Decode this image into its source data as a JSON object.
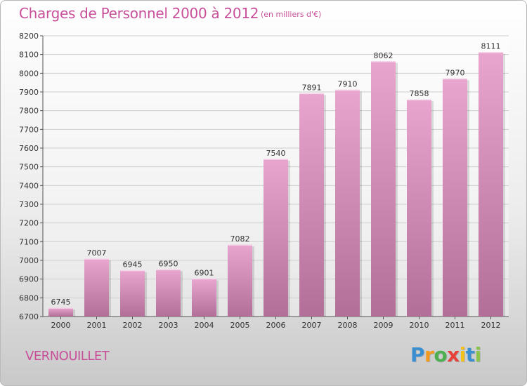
{
  "title": "Charges de Personnel 2000 à 2012",
  "subtitle": "(en milliers d'€)",
  "city": "VERNOUILLET",
  "brand": {
    "letters": [
      "P",
      "r",
      "o",
      "x",
      "i",
      "t",
      "i"
    ],
    "colors": [
      "#3a8fd1",
      "#f39a1e",
      "#4caf50",
      "#e8403a",
      "#f2c21b",
      "#3a8fd1",
      "#8bc34a"
    ]
  },
  "colors": {
    "title": "#c8509a",
    "bar_top": "#e8a6cf",
    "bar_bottom": "#b26f98",
    "grid": "#cfcfcf"
  },
  "chart_data": {
    "type": "bar",
    "categories": [
      "2000",
      "2001",
      "2002",
      "2003",
      "2004",
      "2005",
      "2006",
      "2007",
      "2008",
      "2009",
      "2010",
      "2011",
      "2012"
    ],
    "values": [
      6745,
      7007,
      6945,
      6950,
      6901,
      7082,
      7540,
      7891,
      7910,
      8062,
      7858,
      7970,
      8111
    ],
    "ylim": [
      6700,
      8200
    ],
    "yticks": [
      6700,
      6800,
      6900,
      7000,
      7100,
      7200,
      7300,
      7400,
      7500,
      7600,
      7700,
      7800,
      7900,
      8000,
      8100,
      8200
    ],
    "grid": true,
    "xlabel": "",
    "ylabel": ""
  }
}
